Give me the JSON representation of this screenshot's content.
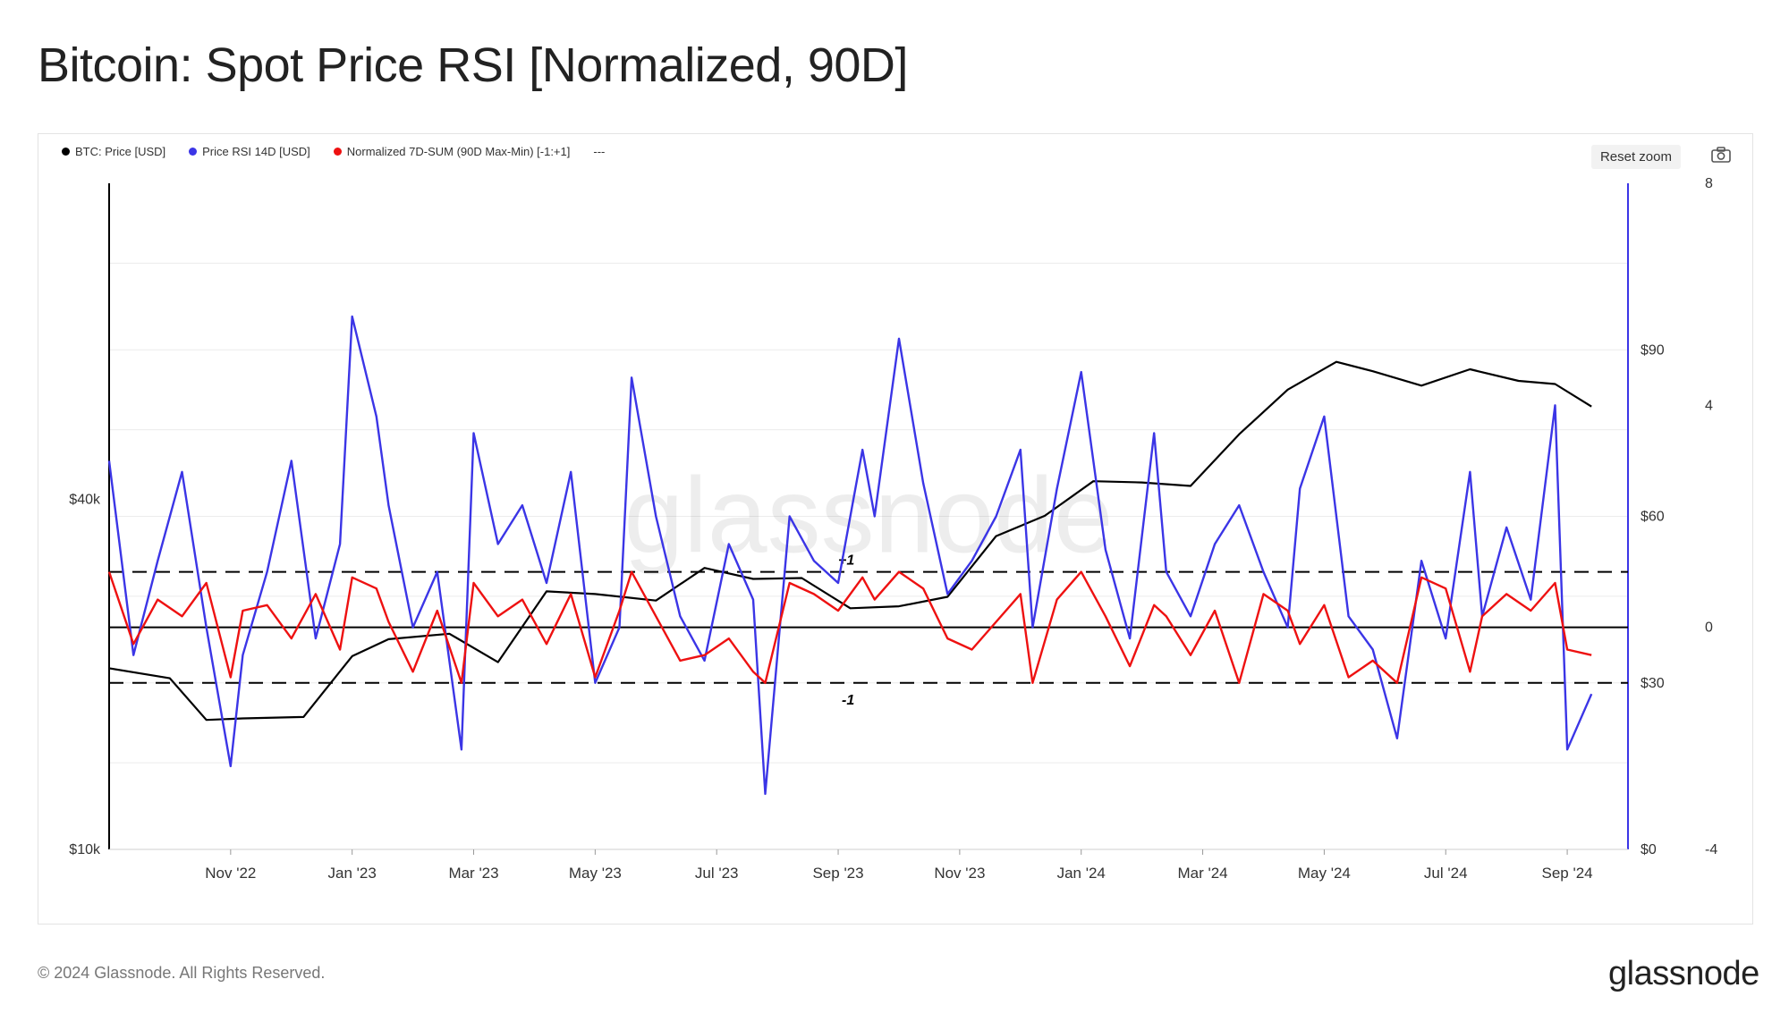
{
  "page": {
    "title": "Bitcoin: Spot Price RSI [Normalized, 90D]",
    "copyright": "© 2024 Glassnode. All Rights Reserved.",
    "logo": "glassnode",
    "watermark": "glassnode",
    "reset_zoom": "Reset zoom",
    "camera_icon": "camera-icon"
  },
  "legend": [
    {
      "label": "BTC: Price [USD]",
      "color": "#000000"
    },
    {
      "label": "Price RSI 14D [USD]",
      "color": "#3b35e6"
    },
    {
      "label": "Normalized 7D-SUM (90D Max-Min) [-1:+1]",
      "color": "#ee1111"
    },
    {
      "label": "---",
      "color": ""
    }
  ],
  "chart_data": {
    "type": "line",
    "title": "Bitcoin: Spot Price RSI [Normalized, 90D]",
    "x_ticks": [
      "Nov '22",
      "Jan '23",
      "Mar '23",
      "May '23",
      "Jul '23",
      "Sep '23",
      "Nov '23",
      "Jan '24",
      "Mar '24",
      "May '24",
      "Jul '24",
      "Sep '24"
    ],
    "y_left": {
      "scale": "log",
      "ticks": [
        "$40k",
        "$10k"
      ],
      "range": [
        10000,
        140000
      ]
    },
    "y_right1": {
      "ticks": [
        "$90",
        "$60",
        "$30",
        "$0"
      ],
      "range": [
        0,
        120
      ]
    },
    "y_right2": {
      "ticks": [
        "8",
        "4",
        "0",
        "-4"
      ],
      "range": [
        -4,
        8
      ]
    },
    "reference_lines": [
      {
        "value": 1,
        "label": "+1",
        "style": "dashed"
      },
      {
        "value": 0,
        "label": "",
        "style": "solid"
      },
      {
        "value": -1,
        "label": "-1",
        "style": "dashed"
      }
    ],
    "series": [
      {
        "name": "BTC: Price [USD]",
        "color": "#000000",
        "axis": "price",
        "x": [
          0.0,
          0.5,
          0.8,
          1.1,
          1.6,
          2.0,
          2.3,
          2.8,
          3.2,
          3.6,
          4.0,
          4.5,
          4.9,
          5.3,
          5.7,
          6.1,
          6.5,
          6.9,
          7.3,
          7.7,
          8.1,
          8.5,
          8.9,
          9.3,
          9.7,
          10.1,
          10.4,
          10.8,
          11.2,
          11.6,
          11.9,
          12.2
        ],
        "values": [
          20500,
          19700,
          16700,
          16800,
          16900,
          21500,
          23000,
          23500,
          21000,
          27800,
          27500,
          26800,
          30500,
          29200,
          29300,
          26000,
          26200,
          27200,
          34600,
          37500,
          43000,
          42800,
          42200,
          51800,
          61800,
          69000,
          66500,
          62800,
          67000,
          64000,
          63200,
          57800
        ]
      },
      {
        "name": "Price RSI 14D [USD]",
        "color": "#3b35e6",
        "axis": "rsi",
        "x": [
          0.0,
          0.2,
          0.4,
          0.6,
          0.8,
          1.0,
          1.1,
          1.3,
          1.5,
          1.7,
          1.9,
          2.0,
          2.2,
          2.3,
          2.5,
          2.7,
          2.9,
          3.0,
          3.2,
          3.4,
          3.6,
          3.8,
          4.0,
          4.2,
          4.3,
          4.5,
          4.7,
          4.9,
          5.1,
          5.3,
          5.4,
          5.6,
          5.8,
          6.0,
          6.2,
          6.3,
          6.5,
          6.7,
          6.9,
          7.1,
          7.3,
          7.5,
          7.6,
          7.8,
          8.0,
          8.2,
          8.4,
          8.6,
          8.7,
          8.9,
          9.1,
          9.3,
          9.5,
          9.7,
          9.8,
          10.0,
          10.2,
          10.4,
          10.6,
          10.8,
          11.0,
          11.2,
          11.3,
          11.5,
          11.7,
          11.9,
          12.0,
          12.2
        ],
        "values": [
          70,
          35,
          52,
          68,
          40,
          15,
          35,
          50,
          70,
          38,
          55,
          96,
          78,
          62,
          40,
          50,
          18,
          75,
          55,
          62,
          48,
          68,
          30,
          40,
          85,
          60,
          42,
          34,
          55,
          45,
          10,
          60,
          52,
          48,
          72,
          60,
          92,
          66,
          46,
          52,
          60,
          72,
          40,
          65,
          86,
          54,
          38,
          75,
          50,
          42,
          55,
          62,
          50,
          40,
          65,
          78,
          42,
          36,
          20,
          52,
          38,
          68,
          42,
          58,
          45,
          80,
          18,
          28
        ]
      },
      {
        "name": "Normalized 7D-SUM (90D Max-Min) [-1:+1]",
        "color": "#ee1111",
        "axis": "norm",
        "x": [
          0.0,
          0.2,
          0.4,
          0.6,
          0.8,
          1.0,
          1.1,
          1.3,
          1.5,
          1.7,
          1.9,
          2.0,
          2.2,
          2.3,
          2.5,
          2.7,
          2.9,
          3.0,
          3.2,
          3.4,
          3.6,
          3.8,
          4.0,
          4.2,
          4.3,
          4.5,
          4.7,
          4.9,
          5.1,
          5.3,
          5.4,
          5.6,
          5.8,
          6.0,
          6.2,
          6.3,
          6.5,
          6.7,
          6.9,
          7.1,
          7.3,
          7.5,
          7.6,
          7.8,
          8.0,
          8.2,
          8.4,
          8.6,
          8.7,
          8.9,
          9.1,
          9.3,
          9.5,
          9.7,
          9.8,
          10.0,
          10.2,
          10.4,
          10.6,
          10.8,
          11.0,
          11.2,
          11.3,
          11.5,
          11.7,
          11.9,
          12.0,
          12.2
        ],
        "values": [
          1.0,
          -0.3,
          0.5,
          0.2,
          0.8,
          -0.9,
          0.3,
          0.4,
          -0.2,
          0.6,
          -0.4,
          0.9,
          0.7,
          0.1,
          -0.8,
          0.3,
          -1.0,
          0.8,
          0.2,
          0.5,
          -0.3,
          0.6,
          -0.9,
          0.3,
          1.0,
          0.2,
          -0.6,
          -0.5,
          -0.2,
          -0.8,
          -1.0,
          0.8,
          0.6,
          0.3,
          0.9,
          0.5,
          1.0,
          0.7,
          -0.2,
          -0.4,
          0.1,
          0.6,
          -1.0,
          0.5,
          1.0,
          0.2,
          -0.7,
          0.4,
          0.2,
          -0.5,
          0.3,
          -1.0,
          0.6,
          0.3,
          -0.3,
          0.4,
          -0.9,
          -0.6,
          -1.0,
          0.9,
          0.7,
          -0.8,
          0.2,
          0.6,
          0.3,
          0.8,
          -0.4,
          -0.5
        ]
      }
    ]
  }
}
